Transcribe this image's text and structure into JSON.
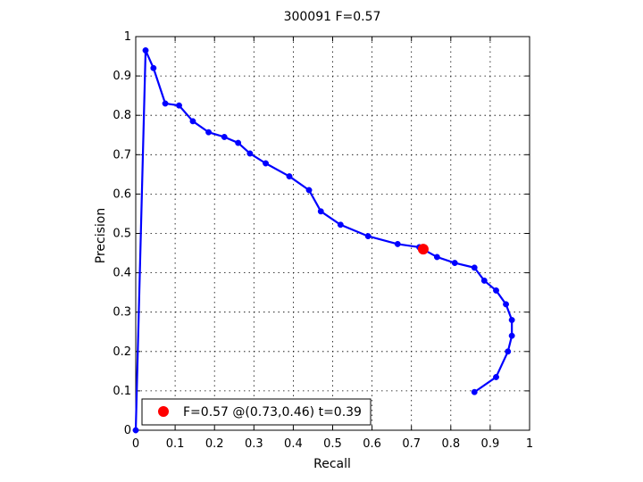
{
  "chart_data": {
    "type": "line",
    "title": "300091 F=0.57",
    "xlabel": "Recall",
    "ylabel": "Precision",
    "xlim": [
      0,
      1
    ],
    "ylim": [
      0,
      1
    ],
    "xticks": [
      0,
      0.1,
      0.2,
      0.3,
      0.4,
      0.5,
      0.6,
      0.7,
      0.8,
      0.9,
      1
    ],
    "xtick_labels": [
      "0",
      "0.1",
      "0.2",
      "0.3",
      "0.4",
      "0.5",
      "0.6",
      "0.7",
      "0.8",
      "0.9",
      "1"
    ],
    "yticks": [
      0,
      0.1,
      0.2,
      0.3,
      0.4,
      0.5,
      0.6,
      0.7,
      0.8,
      0.9,
      1
    ],
    "ytick_labels": [
      "0",
      "0.1",
      "0.2",
      "0.3",
      "0.4",
      "0.5",
      "0.6",
      "0.7",
      "0.8",
      "0.9",
      "1"
    ],
    "grid": true,
    "legend_position": "bottom-left",
    "series": [
      {
        "color": "#0000ff",
        "x": [
          0,
          0.025,
          0.045,
          0.075,
          0.11,
          0.145,
          0.185,
          0.225,
          0.26,
          0.29,
          0.33,
          0.39,
          0.44,
          0.47,
          0.52,
          0.59,
          0.665,
          0.72,
          0.765,
          0.81,
          0.86,
          0.885,
          0.915,
          0.94,
          0.955,
          0.955,
          0.945,
          0.915,
          0.86
        ],
        "y": [
          0,
          0.965,
          0.92,
          0.83,
          0.825,
          0.785,
          0.757,
          0.745,
          0.73,
          0.703,
          0.678,
          0.645,
          0.61,
          0.556,
          0.522,
          0.493,
          0.473,
          0.465,
          0.44,
          0.425,
          0.413,
          0.38,
          0.355,
          0.32,
          0.28,
          0.24,
          0.2,
          0.135,
          0.097
        ]
      }
    ],
    "highlight_point": {
      "x": 0.73,
      "y": 0.46,
      "color": "#ff0000",
      "label": "F=0.57 @(0.73,0.46) t=0.39"
    }
  }
}
